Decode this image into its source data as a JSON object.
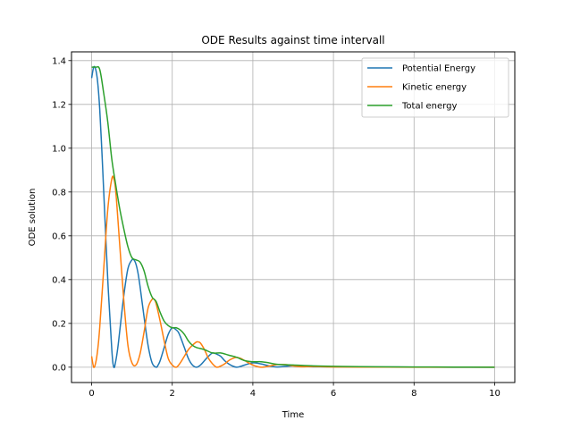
{
  "chart_data": {
    "type": "line",
    "title": "ODE Results against time intervall",
    "xlabel": "Time",
    "ylabel": "ODE solution",
    "xlim": [
      -0.5,
      10.5
    ],
    "ylim": [
      -0.07,
      1.44
    ],
    "xticks": [
      0,
      2,
      4,
      6,
      8,
      10
    ],
    "yticks": [
      0.0,
      0.2,
      0.4,
      0.6,
      0.8,
      1.0,
      1.2,
      1.4
    ],
    "xtick_labels": [
      "0",
      "2",
      "4",
      "6",
      "8",
      "10"
    ],
    "ytick_labels": [
      "0.0",
      "0.2",
      "0.4",
      "0.6",
      "0.8",
      "1.0",
      "1.2",
      "1.4"
    ],
    "grid": true,
    "legend_position": "top-right",
    "series": [
      {
        "name": "Potential Energy",
        "color": "#1f77b4",
        "x": [
          0,
          0.05,
          0.1,
          0.15,
          0.2,
          0.25,
          0.3,
          0.4,
          0.5,
          0.55,
          0.6,
          0.65,
          0.7,
          0.8,
          0.9,
          1.0,
          1.05,
          1.1,
          1.15,
          1.2,
          1.3,
          1.4,
          1.5,
          1.6,
          1.65,
          1.7,
          1.8,
          1.9,
          2.0,
          2.1,
          2.15,
          2.2,
          2.3,
          2.4,
          2.5,
          2.6,
          2.7,
          2.8,
          2.9,
          3.0,
          3.1,
          3.2,
          3.3,
          3.4,
          3.5,
          3.6,
          3.7,
          3.8,
          4.0,
          4.2,
          4.4,
          4.6,
          4.8,
          5.0,
          5.2,
          5.5,
          6.0,
          7.0,
          8.0,
          9.0,
          10.0
        ],
        "values": [
          1.32,
          1.37,
          1.36,
          1.3,
          1.18,
          1.0,
          0.8,
          0.4,
          0.08,
          0.0,
          0.03,
          0.09,
          0.17,
          0.33,
          0.45,
          0.49,
          0.49,
          0.47,
          0.43,
          0.37,
          0.23,
          0.1,
          0.02,
          0.0,
          0.01,
          0.03,
          0.09,
          0.15,
          0.18,
          0.17,
          0.16,
          0.14,
          0.09,
          0.04,
          0.01,
          0.0,
          0.01,
          0.03,
          0.05,
          0.065,
          0.06,
          0.05,
          0.03,
          0.015,
          0.005,
          0.0,
          0.004,
          0.01,
          0.02,
          0.015,
          0.006,
          0.001,
          0.004,
          0.006,
          0.004,
          0.002,
          0.002,
          0.001,
          0.0005,
          0.0,
          0.0
        ]
      },
      {
        "name": "Kinetic energy",
        "color": "#ff7f0e",
        "x": [
          0,
          0.05,
          0.1,
          0.15,
          0.2,
          0.3,
          0.4,
          0.5,
          0.55,
          0.6,
          0.7,
          0.8,
          0.9,
          1.0,
          1.1,
          1.2,
          1.3,
          1.4,
          1.5,
          1.55,
          1.6,
          1.7,
          1.8,
          1.9,
          2.0,
          2.1,
          2.2,
          2.3,
          2.4,
          2.5,
          2.6,
          2.65,
          2.7,
          2.8,
          2.9,
          3.0,
          3.1,
          3.2,
          3.3,
          3.4,
          3.5,
          3.6,
          3.7,
          3.8,
          4.0,
          4.2,
          4.4,
          4.6,
          4.8,
          5.0,
          5.2,
          5.5,
          6.0,
          7.0,
          8.0,
          9.0,
          10.0
        ],
        "values": [
          0.05,
          0.0,
          0.02,
          0.08,
          0.18,
          0.45,
          0.72,
          0.86,
          0.86,
          0.8,
          0.55,
          0.3,
          0.1,
          0.02,
          0.01,
          0.06,
          0.16,
          0.27,
          0.31,
          0.31,
          0.29,
          0.21,
          0.12,
          0.04,
          0.01,
          0.0,
          0.02,
          0.05,
          0.08,
          0.1,
          0.115,
          0.115,
          0.11,
          0.08,
          0.04,
          0.015,
          0.0,
          0.005,
          0.015,
          0.03,
          0.04,
          0.045,
          0.04,
          0.03,
          0.01,
          0.0,
          0.005,
          0.012,
          0.012,
          0.006,
          0.002,
          0.003,
          0.001,
          0.0005,
          0.0,
          0.0,
          0.0
        ]
      },
      {
        "name": "Total energy",
        "color": "#2ca02c",
        "x": [
          0,
          0.1,
          0.2,
          0.3,
          0.4,
          0.5,
          0.6,
          0.7,
          0.8,
          0.9,
          1.0,
          1.1,
          1.2,
          1.3,
          1.4,
          1.5,
          1.6,
          1.7,
          1.8,
          1.9,
          2.0,
          2.1,
          2.2,
          2.3,
          2.4,
          2.5,
          2.6,
          2.8,
          3.0,
          3.2,
          3.4,
          3.6,
          3.8,
          4.0,
          4.2,
          4.4,
          4.6,
          5.0,
          5.5,
          6.0,
          7.0,
          8.0,
          9.0,
          10.0
        ],
        "values": [
          1.37,
          1.37,
          1.36,
          1.25,
          1.12,
          0.95,
          0.83,
          0.72,
          0.63,
          0.55,
          0.5,
          0.49,
          0.48,
          0.44,
          0.37,
          0.32,
          0.3,
          0.25,
          0.21,
          0.19,
          0.18,
          0.18,
          0.17,
          0.15,
          0.12,
          0.1,
          0.09,
          0.08,
          0.065,
          0.065,
          0.055,
          0.045,
          0.03,
          0.025,
          0.025,
          0.02,
          0.013,
          0.01,
          0.006,
          0.004,
          0.002,
          0.001,
          0.0005,
          0.0
        ]
      }
    ]
  }
}
